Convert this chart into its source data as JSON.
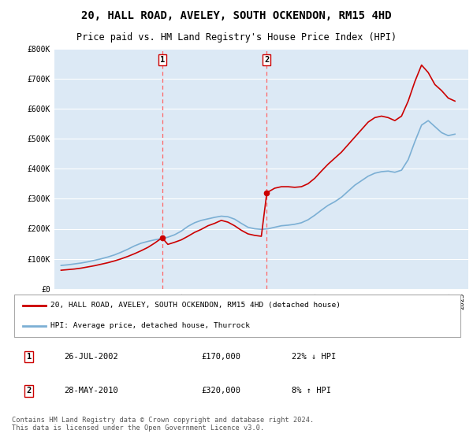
{
  "title": "20, HALL ROAD, AVELEY, SOUTH OCKENDON, RM15 4HD",
  "subtitle": "Price paid vs. HM Land Registry's House Price Index (HPI)",
  "title_fontsize": 10,
  "subtitle_fontsize": 8.5,
  "background_color": "#ffffff",
  "plot_background": "#dce9f5",
  "ylim": [
    0,
    800000
  ],
  "yticks": [
    0,
    100000,
    200000,
    300000,
    400000,
    500000,
    600000,
    700000,
    800000
  ],
  "ytick_labels": [
    "£0",
    "£100K",
    "£200K",
    "£300K",
    "£400K",
    "£500K",
    "£600K",
    "£700K",
    "£800K"
  ],
  "sale1_date": 2002.57,
  "sale1_price": 170000,
  "sale1_label": "1",
  "sale2_date": 2010.41,
  "sale2_price": 320000,
  "sale2_label": "2",
  "red_line_color": "#cc0000",
  "blue_line_color": "#7bafd4",
  "dashed_line_color": "#ff6666",
  "legend_label_red": "20, HALL ROAD, AVELEY, SOUTH OCKENDON, RM15 4HD (detached house)",
  "legend_label_blue": "HPI: Average price, detached house, Thurrock",
  "footer": "Contains HM Land Registry data © Crown copyright and database right 2024.\nThis data is licensed under the Open Government Licence v3.0.",
  "hpi_years": [
    1995.0,
    1995.5,
    1996.0,
    1996.5,
    1997.0,
    1997.5,
    1998.0,
    1998.5,
    1999.0,
    1999.5,
    2000.0,
    2000.5,
    2001.0,
    2001.5,
    2002.0,
    2002.5,
    2003.0,
    2003.5,
    2004.0,
    2004.5,
    2005.0,
    2005.5,
    2006.0,
    2006.5,
    2007.0,
    2007.5,
    2008.0,
    2008.5,
    2009.0,
    2009.5,
    2010.0,
    2010.5,
    2011.0,
    2011.5,
    2012.0,
    2012.5,
    2013.0,
    2013.5,
    2014.0,
    2014.5,
    2015.0,
    2015.5,
    2016.0,
    2016.5,
    2017.0,
    2017.5,
    2018.0,
    2018.5,
    2019.0,
    2019.5,
    2020.0,
    2020.5,
    2021.0,
    2021.5,
    2022.0,
    2022.5,
    2023.0,
    2023.5,
    2024.0,
    2024.5
  ],
  "hpi_values": [
    78000,
    80000,
    83000,
    86000,
    90000,
    95000,
    100000,
    106000,
    113000,
    122000,
    132000,
    143000,
    152000,
    158000,
    163000,
    167000,
    172000,
    180000,
    192000,
    208000,
    220000,
    228000,
    233000,
    238000,
    242000,
    240000,
    232000,
    218000,
    205000,
    200000,
    198000,
    200000,
    205000,
    210000,
    212000,
    215000,
    220000,
    230000,
    245000,
    262000,
    278000,
    290000,
    305000,
    325000,
    345000,
    360000,
    375000,
    385000,
    390000,
    392000,
    388000,
    395000,
    430000,
    490000,
    545000,
    560000,
    540000,
    520000,
    510000,
    515000
  ],
  "red_years": [
    1995.0,
    1995.5,
    1996.0,
    1996.5,
    1997.0,
    1997.5,
    1998.0,
    1998.5,
    1999.0,
    1999.5,
    2000.0,
    2000.5,
    2001.0,
    2001.5,
    2002.0,
    2002.57,
    2003.0,
    2003.5,
    2004.0,
    2004.5,
    2005.0,
    2005.5,
    2006.0,
    2006.5,
    2007.0,
    2007.5,
    2008.0,
    2008.5,
    2009.0,
    2009.5,
    2010.0,
    2010.41,
    2011.0,
    2011.5,
    2012.0,
    2012.5,
    2013.0,
    2013.5,
    2014.0,
    2014.5,
    2015.0,
    2015.5,
    2016.0,
    2016.5,
    2017.0,
    2017.5,
    2018.0,
    2018.5,
    2019.0,
    2019.5,
    2020.0,
    2020.5,
    2021.0,
    2021.5,
    2022.0,
    2022.5,
    2023.0,
    2023.5,
    2024.0,
    2024.5
  ],
  "red_values": [
    62000,
    64000,
    66000,
    69000,
    73000,
    77000,
    82000,
    87000,
    93000,
    100000,
    108000,
    117000,
    127000,
    138000,
    152000,
    170000,
    148000,
    155000,
    163000,
    175000,
    188000,
    198000,
    210000,
    218000,
    228000,
    222000,
    210000,
    195000,
    183000,
    178000,
    175000,
    320000,
    335000,
    340000,
    340000,
    338000,
    340000,
    350000,
    368000,
    392000,
    415000,
    435000,
    455000,
    480000,
    505000,
    530000,
    555000,
    570000,
    575000,
    570000,
    560000,
    575000,
    625000,
    690000,
    745000,
    720000,
    680000,
    660000,
    635000,
    625000
  ]
}
